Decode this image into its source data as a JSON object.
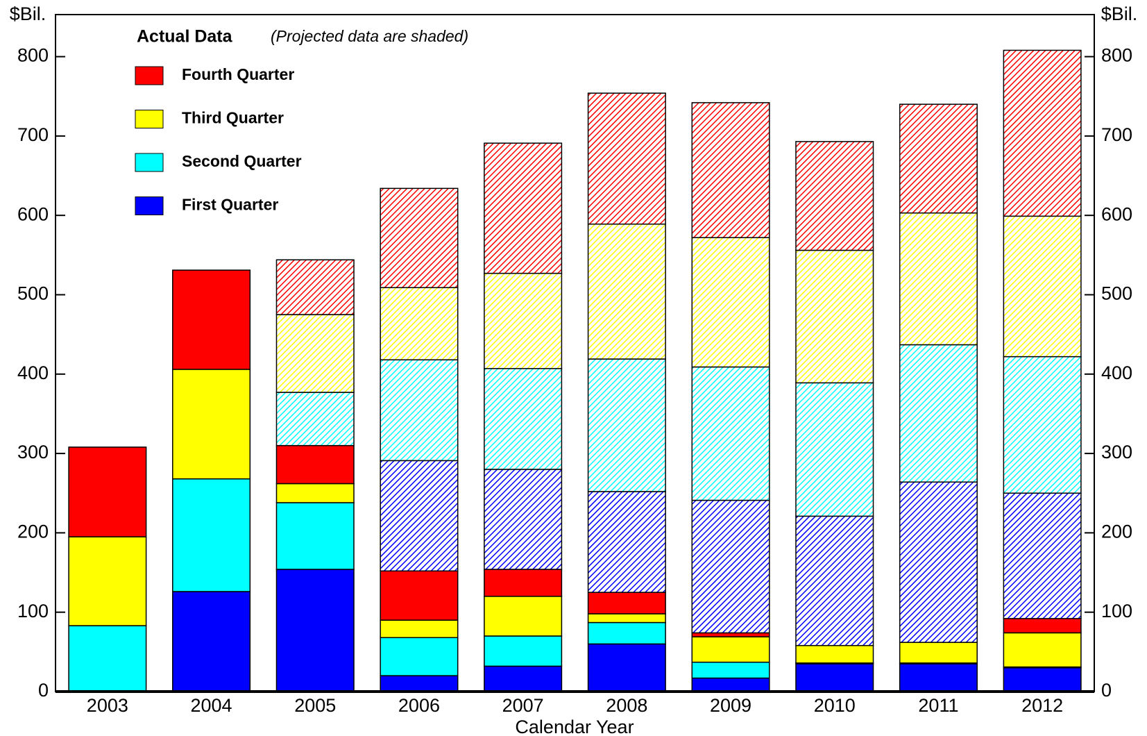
{
  "chart_data": {
    "type": "bar",
    "y_label": "$Bil.",
    "x_label": "Calendar Year",
    "legend_title": "Actual Data",
    "legend_note": "(Projected data are shaded)",
    "categories": [
      "2003",
      "2004",
      "2005",
      "2006",
      "2007",
      "2008",
      "2009",
      "2010",
      "2011",
      "2012"
    ],
    "series": [
      {
        "name": "First Quarter",
        "color": "#0000ff",
        "values": [
          0,
          126,
          154,
          20,
          32,
          60,
          17,
          35,
          35,
          30
        ],
        "projected_values": [
          0,
          0,
          0,
          139,
          126,
          127,
          167,
          163,
          202,
          158
        ]
      },
      {
        "name": "Second Quarter",
        "color": "#00ffff",
        "values": [
          83,
          142,
          84,
          48,
          38,
          27,
          20,
          1,
          1,
          1
        ],
        "projected_values": [
          0,
          0,
          67,
          127,
          127,
          167,
          168,
          168,
          173,
          172
        ]
      },
      {
        "name": "Third Quarter",
        "color": "#ffff00",
        "values": [
          112,
          138,
          24,
          22,
          50,
          11,
          32,
          22,
          26,
          43
        ],
        "projected_values": [
          0,
          0,
          98,
          91,
          120,
          170,
          163,
          167,
          166,
          177
        ]
      },
      {
        "name": "Fourth Quarter",
        "color": "#ff0000",
        "values": [
          113,
          125,
          48,
          62,
          34,
          27,
          5,
          0,
          0,
          18
        ],
        "projected_values": [
          0,
          0,
          69,
          125,
          164,
          165,
          170,
          137,
          137,
          209
        ]
      }
    ],
    "ylim": [
      0,
      853
    ],
    "yticks": [
      0,
      100,
      200,
      300,
      400,
      500,
      600,
      700,
      800
    ]
  }
}
